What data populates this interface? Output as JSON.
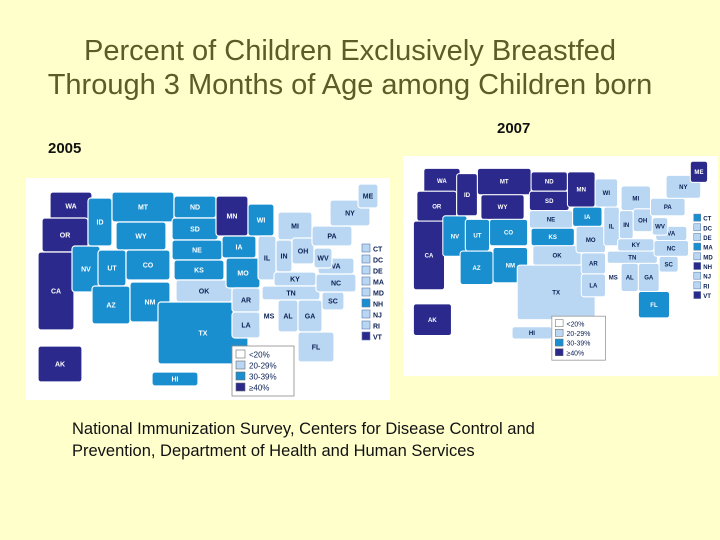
{
  "title": {
    "line1": "Percent of Children Exclusively Breastfed",
    "line2": "Through 3 Months of Age among Children born"
  },
  "maps": [
    {
      "year": "2005",
      "legend": [
        "<20%",
        "20-29%",
        "30-39%",
        "≥40%"
      ],
      "small_states": [
        "CT",
        "DC",
        "DE",
        "MA",
        "MD",
        "NH",
        "NJ",
        "RI",
        "VT"
      ],
      "labels": [
        "WA",
        "OR",
        "CA",
        "NV",
        "ID",
        "MT",
        "WY",
        "UT",
        "AZ",
        "CO",
        "NM",
        "ND",
        "SD",
        "NE",
        "KS",
        "OK",
        "TX",
        "MN",
        "IA",
        "MO",
        "AR",
        "LA",
        "WI",
        "IL",
        "MI",
        "IN",
        "OH",
        "KY",
        "TN",
        "MS",
        "AL",
        "GA",
        "FL",
        "SC",
        "NC",
        "VA",
        "WV",
        "PA",
        "NY",
        "ME",
        "AK",
        "HI"
      ]
    },
    {
      "year": "2007",
      "legend": [
        "<20%",
        "20-29%",
        "30-39%",
        "≥40%"
      ],
      "small_states": [
        "CT",
        "DC",
        "DE",
        "MA",
        "MD",
        "NH",
        "NJ",
        "RI",
        "VT"
      ],
      "labels": [
        "WA",
        "OR",
        "CA",
        "NV",
        "ID",
        "MT",
        "WY",
        "UT",
        "AZ",
        "CO",
        "NM",
        "ND",
        "SD",
        "NE",
        "KS",
        "OK",
        "TX",
        "MN",
        "IA",
        "MO",
        "AR",
        "LA",
        "WI",
        "IL",
        "MI",
        "IN",
        "OH",
        "KY",
        "TN",
        "MS",
        "AL",
        "GA",
        "FL",
        "SC",
        "NC",
        "VA",
        "WV",
        "PA",
        "NY",
        "ME",
        "AK",
        "HI"
      ]
    }
  ],
  "colors": {
    "lt20": "#ffffff",
    "p20_29": "#b9d6f2",
    "p30_39": "#1a8fd0",
    "ge40": "#2b2a8c",
    "background": "#ffffcc"
  },
  "source": {
    "line1": "National Immunization Survey, Centers for Disease Control and",
    "line2": "Prevention, Department of Health and Human Services"
  }
}
